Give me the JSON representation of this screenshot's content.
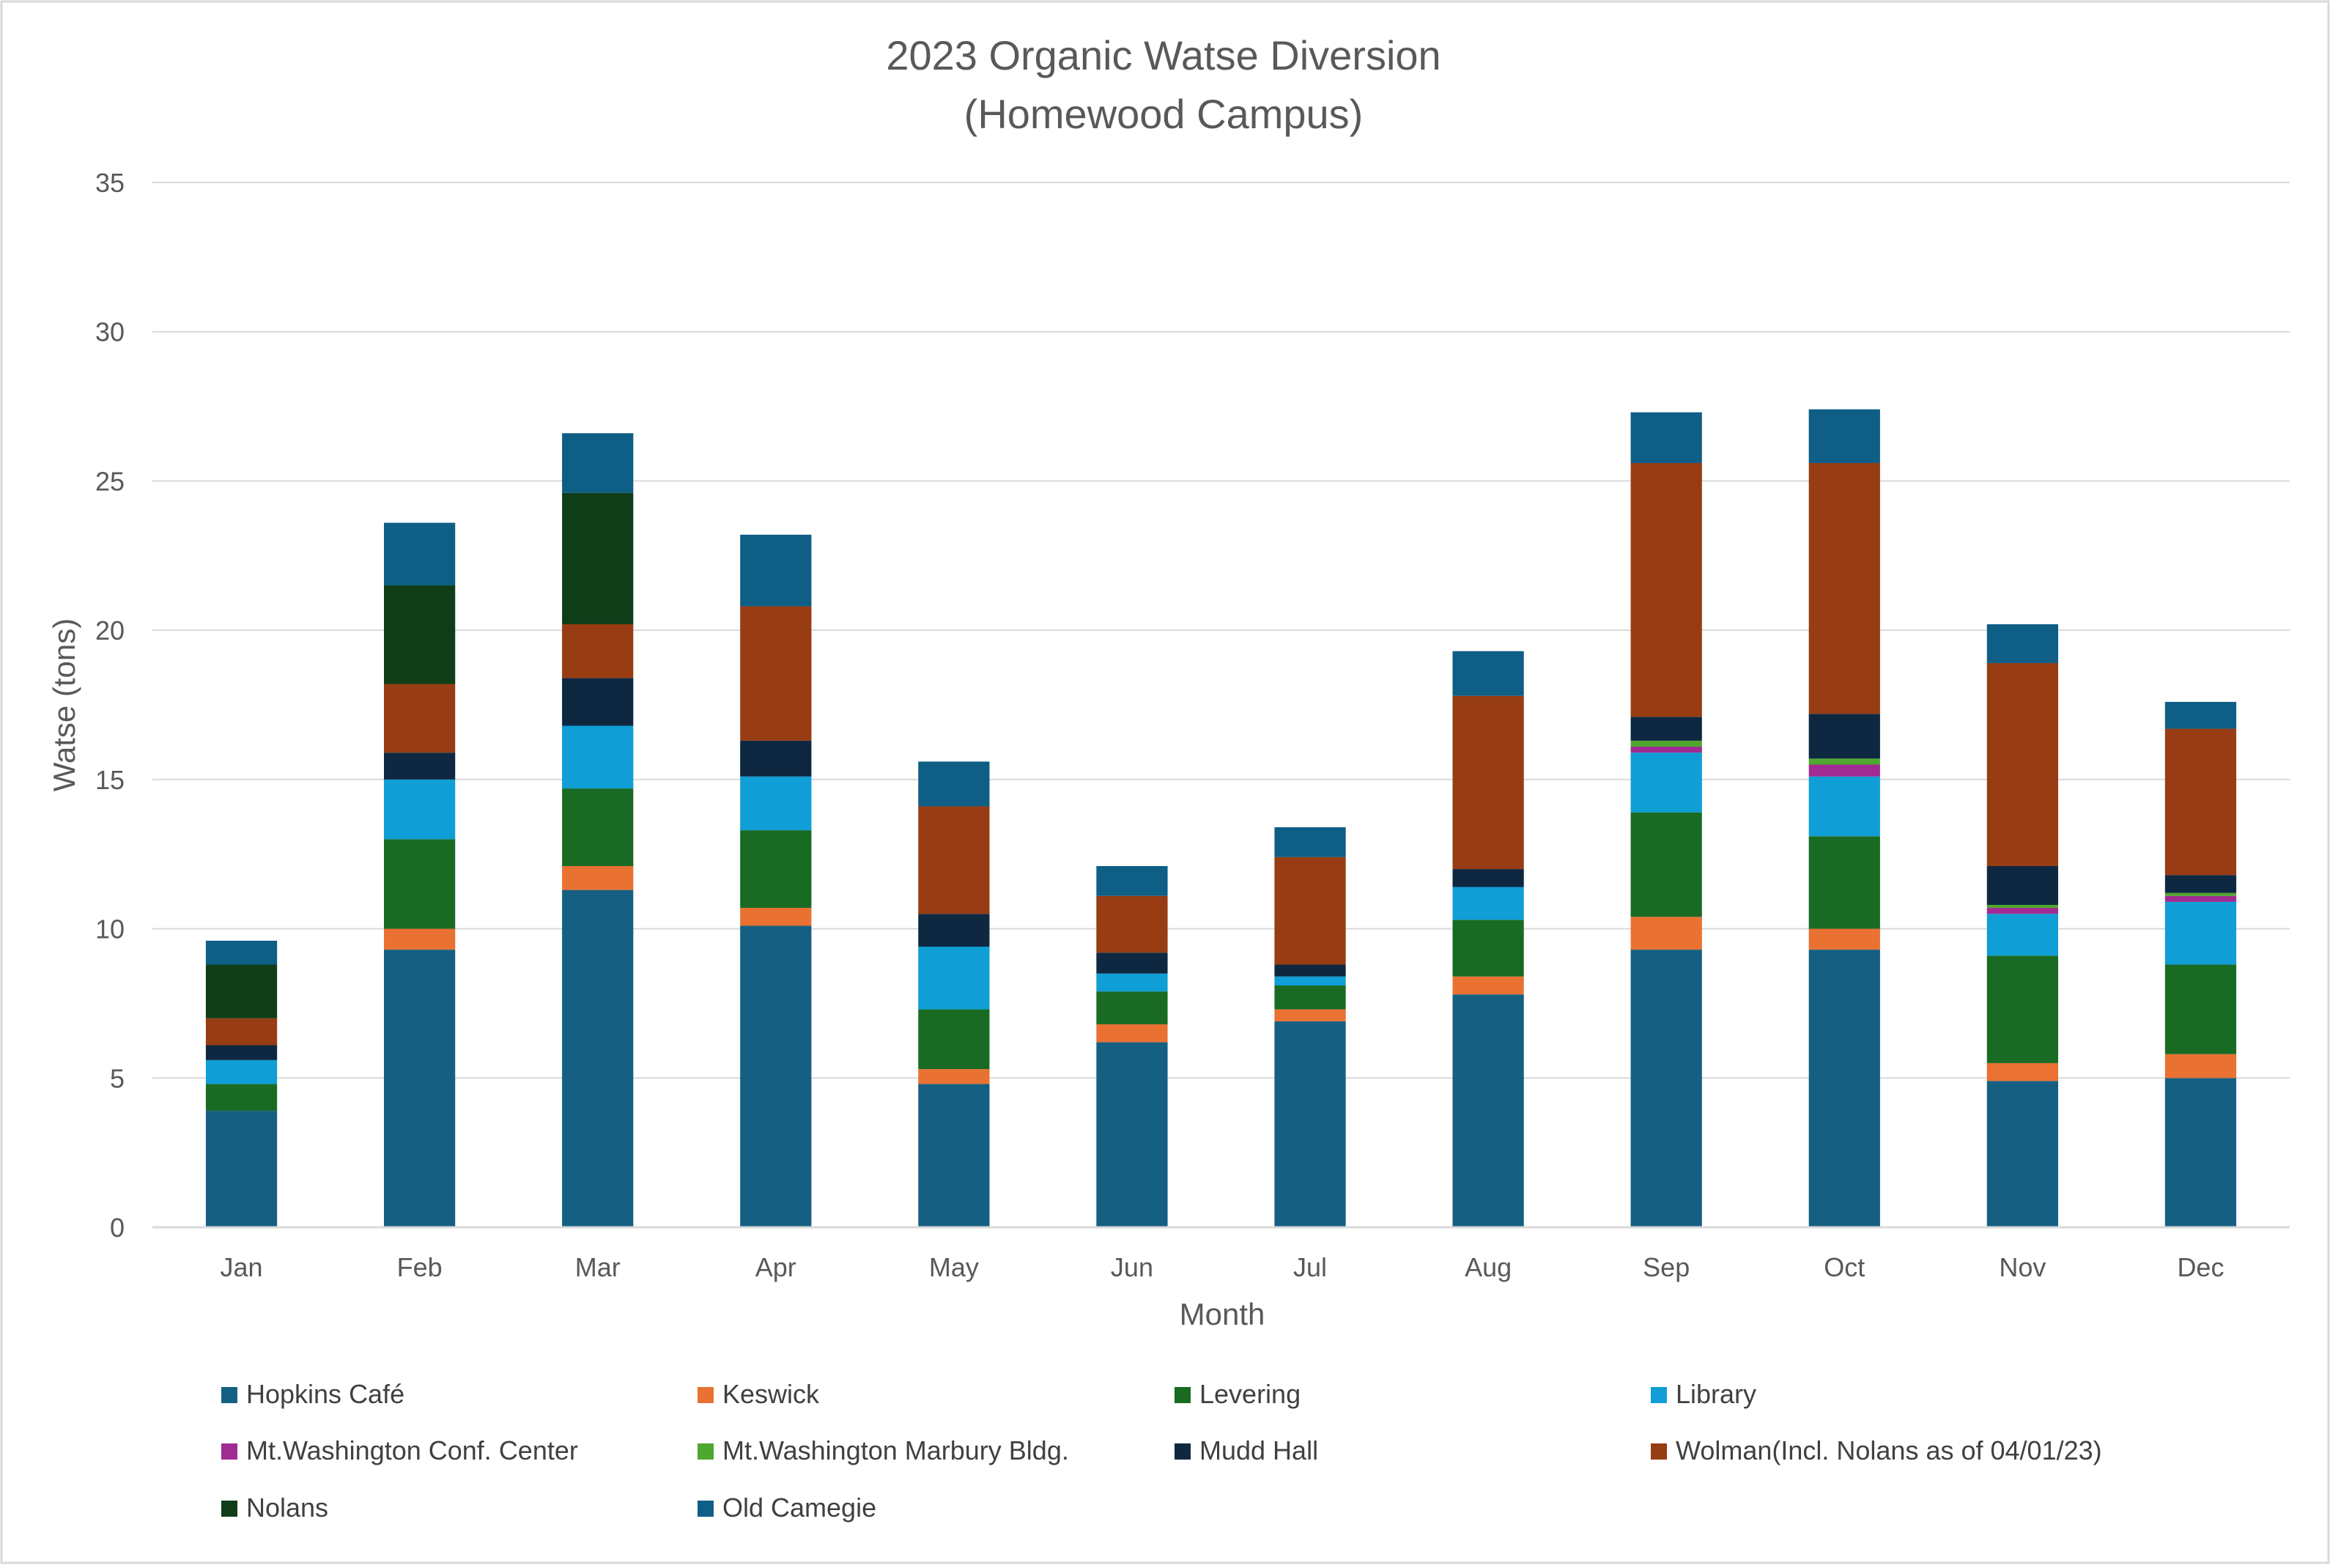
{
  "chart_data": {
    "type": "bar",
    "stacked": true,
    "title": "2023 Organic Watse Diversion",
    "subtitle": "(Homewood Campus)",
    "xlabel": "Month",
    "ylabel": "Watse (tons)",
    "ylim": [
      0,
      35
    ],
    "yticks": [
      0,
      5,
      10,
      15,
      20,
      25,
      30,
      35
    ],
    "grid": true,
    "legend_position": "bottom",
    "categories": [
      "Jan",
      "Feb",
      "Mar",
      "Apr",
      "May",
      "Jun",
      "Jul",
      "Aug",
      "Sep",
      "Oct",
      "Nov",
      "Dec"
    ],
    "series": [
      {
        "name": "Hopkins Café",
        "color": "#156082",
        "values": [
          3.9,
          9.3,
          11.3,
          10.1,
          4.8,
          6.2,
          6.9,
          7.8,
          9.3,
          9.3,
          4.9,
          5.0
        ]
      },
      {
        "name": "Keswick",
        "color": "#E97132",
        "values": [
          0,
          0.7,
          0.8,
          0.6,
          0.5,
          0.6,
          0.4,
          0.6,
          1.1,
          0.7,
          0.6,
          0.8
        ]
      },
      {
        "name": "Levering",
        "color": "#196B24",
        "values": [
          0.9,
          3.0,
          2.6,
          2.6,
          2.0,
          1.1,
          0.8,
          1.9,
          3.5,
          3.1,
          3.6,
          3.0
        ]
      },
      {
        "name": "Library",
        "color": "#0F9ED5",
        "values": [
          0.8,
          2.0,
          2.1,
          1.8,
          2.1,
          0.6,
          0.3,
          1.1,
          2.0,
          2.0,
          1.4,
          2.1
        ]
      },
      {
        "name": "Mt.Washington Conf. Center",
        "color": "#A02B93",
        "values": [
          0,
          0,
          0,
          0,
          0,
          0,
          0,
          0,
          0.2,
          0.4,
          0.2,
          0.2
        ]
      },
      {
        "name": "Mt.Washington Marbury Bldg.",
        "color": "#4EA72E",
        "values": [
          0,
          0,
          0,
          0,
          0,
          0,
          0,
          0,
          0.2,
          0.2,
          0.1,
          0.1
        ]
      },
      {
        "name": "Mudd Hall",
        "color": "#0E2841",
        "values": [
          0.5,
          0.9,
          1.6,
          1.2,
          1.1,
          0.7,
          0.4,
          0.6,
          0.8,
          1.5,
          1.3,
          0.6
        ]
      },
      {
        "name": "Wolman(Incl. Nolans as of 04/01/23)",
        "color": "#983C13",
        "values": [
          0.9,
          2.3,
          1.8,
          4.5,
          3.6,
          1.9,
          3.6,
          5.8,
          8.5,
          8.4,
          6.8,
          4.9
        ]
      },
      {
        "name": "Nolans",
        "color": "#0F3D18",
        "values": [
          1.8,
          3.3,
          4.4,
          0,
          0,
          0,
          0,
          0,
          0,
          0,
          0,
          0
        ]
      },
      {
        "name": "Old Camegie",
        "color": "#0E5E85",
        "values": [
          0.8,
          2.1,
          2.0,
          2.4,
          1.5,
          1.0,
          1.0,
          1.5,
          1.7,
          1.8,
          1.3,
          0.9
        ]
      }
    ]
  }
}
